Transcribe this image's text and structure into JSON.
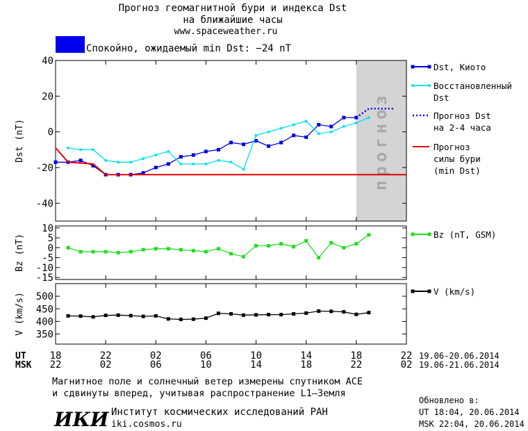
{
  "header": {
    "title1": "Прогноз геомагнитной бури и индекса Dst",
    "title2": "на ближайшие часы",
    "url": "www.spaceweather.ru"
  },
  "status": {
    "text": "Спокойно, ожидаемый min Dst: −24 nT",
    "color": "#0000ee"
  },
  "chart_data": [
    {
      "type": "line",
      "y_label": "Dst (nT)",
      "xlim": [
        0,
        28
      ],
      "ylim": [
        -50,
        40
      ],
      "yticks": [
        -40,
        -20,
        0,
        20,
        40
      ],
      "forecast_band": {
        "label": "прогноз",
        "x": [
          24,
          28
        ]
      },
      "series": [
        {
          "name": "Dst, Киото",
          "color": "#0000e0",
          "marker": "square",
          "x": [
            0,
            1,
            2,
            3,
            4,
            5,
            6,
            7,
            8,
            9,
            10,
            11,
            12,
            13,
            14,
            15,
            16,
            17,
            18,
            19,
            20,
            21,
            22,
            23,
            24
          ],
          "values": [
            -17,
            -17,
            -16,
            -19,
            -24,
            -24,
            -24,
            -23,
            -20,
            -18,
            -14,
            -13,
            -11,
            -10,
            -6,
            -7,
            -5,
            -8,
            -6,
            -2,
            -3,
            4,
            3,
            8,
            8
          ]
        },
        {
          "name": "Восстановленный\nDst",
          "color": "#00e0ee",
          "marker": "small-square",
          "x": [
            1,
            2,
            3,
            4,
            5,
            6,
            7,
            8,
            9,
            10,
            11,
            12,
            13,
            14,
            15,
            16,
            17,
            18,
            19,
            20,
            21,
            22,
            23,
            24,
            25
          ],
          "values": [
            -9,
            -10,
            -10,
            -16,
            -17,
            -17,
            -15,
            -13,
            -11,
            -18,
            -18,
            -18,
            -16,
            -17,
            -21,
            -2,
            0,
            2,
            4,
            6,
            -1,
            0,
            3,
            5,
            8
          ]
        },
        {
          "name": "Прогноз Dst\nна 2-4 часа",
          "color": "#0000e0",
          "line_style": "dotted",
          "x": [
            24,
            25,
            26,
            27
          ],
          "values": [
            8,
            13,
            13,
            13
          ]
        },
        {
          "name": "Прогноз\nсилы бури\n(min Dst)",
          "color": "#e00000",
          "x": [
            0,
            1,
            3,
            4,
            28
          ],
          "values": [
            -9,
            -17,
            -18,
            -24,
            -24
          ]
        }
      ]
    },
    {
      "type": "line",
      "y_label": "Bz (nT)",
      "xlim": [
        0,
        28
      ],
      "ylim": [
        -16,
        11
      ],
      "yticks": [
        -15,
        -10,
        -5,
        0,
        5,
        10
      ],
      "series": [
        {
          "name": "Bz (nT, GSM)",
          "color": "#22dd22",
          "marker": "square",
          "x": [
            1,
            2,
            3,
            4,
            5,
            6,
            7,
            8,
            9,
            10,
            11,
            12,
            13,
            14,
            15,
            16,
            17,
            18,
            19,
            20,
            21,
            22,
            23,
            24,
            25
          ],
          "values": [
            0,
            -2,
            -2,
            -2,
            -2.5,
            -2,
            -1,
            -0.5,
            -0.5,
            -1,
            -1.5,
            -2,
            -0.5,
            -3,
            -4.5,
            1,
            1,
            2,
            0.5,
            3.5,
            -5,
            2.5,
            0,
            2,
            6.5
          ]
        }
      ]
    },
    {
      "type": "line",
      "y_label": "V (km/s)",
      "xlim": [
        0,
        28
      ],
      "ylim": [
        310,
        550
      ],
      "yticks": [
        350,
        400,
        450,
        500
      ],
      "xticks": [
        {
          "value": 0,
          "label": "18"
        },
        {
          "value": 4,
          "label": "22"
        },
        {
          "value": 8,
          "label": "02"
        },
        {
          "value": 12,
          "label": "06"
        },
        {
          "value": 16,
          "label": "10"
        },
        {
          "value": 20,
          "label": "14"
        },
        {
          "value": 24,
          "label": "18"
        },
        {
          "value": 28,
          "label": "22"
        }
      ],
      "msk_ticks": [
        {
          "value": 0,
          "label": "22"
        },
        {
          "value": 4,
          "label": "02"
        },
        {
          "value": 8,
          "label": "06"
        },
        {
          "value": 12,
          "label": "10"
        },
        {
          "value": 16,
          "label": "14"
        },
        {
          "value": 20,
          "label": "18"
        },
        {
          "value": 24,
          "label": "22"
        },
        {
          "value": 28,
          "label": "02"
        }
      ],
      "time_axis": {
        "ut": "UT",
        "msk": "MSK",
        "ut_dates": "19.06-20.06.2014",
        "msk_dates": "19.06-21.06.2014"
      },
      "series": [
        {
          "name": "V (km/s)",
          "color": "#000000",
          "marker": "square",
          "x": [
            1,
            2,
            3,
            4,
            5,
            6,
            7,
            8,
            9,
            10,
            11,
            12,
            13,
            14,
            15,
            16,
            17,
            18,
            19,
            20,
            21,
            22,
            23,
            24,
            25
          ],
          "values": [
            422,
            421,
            418,
            424,
            425,
            423,
            420,
            422,
            410,
            408,
            409,
            413,
            432,
            430,
            425,
            426,
            427,
            427,
            430,
            433,
            441,
            440,
            438,
            428,
            435
          ]
        }
      ]
    }
  ],
  "footer": {
    "note1": "Магнитное поле и солнечный ветер измерены спутником ACE",
    "note2": "и сдвинуты вперед, учитывая распространение L1–Земля",
    "logo": "ИКИ",
    "institute": "Институт космических исследований РАН",
    "site": "iki.cosmos.ru",
    "updated": "Обновлено в:",
    "updated_ut": "UT  18:04, 20.06.2014",
    "updated_msk": "MSK 22:04, 20.06.2014"
  }
}
